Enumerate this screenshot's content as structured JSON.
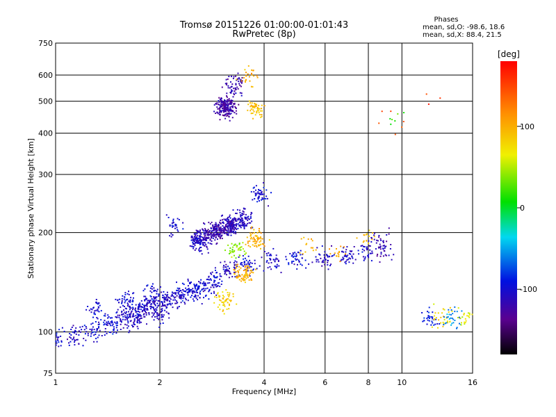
{
  "header": {
    "title_line1": "Tromsø 20151226 01:00:00-01:01:43",
    "title_line2": "RwPretec (8p)",
    "phases_heading": "Phases",
    "phases_o": "mean, sd,O:  -98.6, 18.6",
    "phases_x": "mean, sd,X:   88.4, 21.5"
  },
  "colorbar": {
    "unit_label": "[deg]",
    "ticks": [
      "100",
      "0",
      "-100"
    ],
    "tick_values": [
      100,
      0,
      -100
    ],
    "range": [
      -180,
      180
    ]
  },
  "chart_data": {
    "type": "scatter",
    "title": "Tromsø 20151226 01:00:00-01:01:43",
    "subtitle": "RwPretec (8p)",
    "xlabel": "Frequency [MHz]",
    "ylabel": "Stationary phase Virtual Height [km]",
    "x_scale": "log",
    "y_scale": "log",
    "xlim": [
      1,
      16
    ],
    "ylim": [
      75,
      750
    ],
    "x_ticks": [
      1,
      2,
      4,
      6,
      8,
      10,
      16
    ],
    "x_tick_labels": [
      "1",
      "2",
      "4",
      "6",
      "8",
      "10",
      "16"
    ],
    "y_ticks": [
      75,
      100,
      200,
      300,
      400,
      500,
      600,
      750
    ],
    "y_tick_labels": [
      "75",
      "100",
      "200",
      "300",
      "400",
      "500",
      "600",
      "750"
    ],
    "grid": true,
    "color_by": "phase_deg",
    "series": [
      {
        "values": [
          {
            "x": 1.0,
            "y": 95,
            "phase": -100,
            "n": 40
          },
          {
            "x": 1.15,
            "y": 97,
            "phase": -105,
            "n": 40
          },
          {
            "x": 1.3,
            "y": 100,
            "phase": -100,
            "n": 40
          },
          {
            "x": 1.45,
            "y": 105,
            "phase": -100,
            "n": 50
          },
          {
            "x": 1.6,
            "y": 112,
            "phase": -110,
            "n": 60
          },
          {
            "x": 1.75,
            "y": 117,
            "phase": -105,
            "n": 60
          },
          {
            "x": 1.9,
            "y": 121,
            "phase": -110,
            "n": 60
          },
          {
            "x": 2.1,
            "y": 124,
            "phase": -110,
            "n": 60
          },
          {
            "x": 2.3,
            "y": 128,
            "phase": -105,
            "n": 60
          },
          {
            "x": 2.5,
            "y": 133,
            "phase": -100,
            "n": 60
          },
          {
            "x": 2.7,
            "y": 136,
            "phase": -100,
            "n": 50
          },
          {
            "x": 2.9,
            "y": 145,
            "phase": -100,
            "n": 50
          },
          {
            "x": 3.2,
            "y": 155,
            "phase": -110,
            "n": 40
          },
          {
            "x": 3.6,
            "y": 160,
            "phase": -100,
            "n": 40
          },
          {
            "x": 4.2,
            "y": 163,
            "phase": -110,
            "n": 40
          },
          {
            "x": 5.0,
            "y": 166,
            "phase": -100,
            "n": 40
          },
          {
            "x": 6.0,
            "y": 168,
            "phase": -110,
            "n": 40
          },
          {
            "x": 7.0,
            "y": 170,
            "phase": -105,
            "n": 40
          },
          {
            "x": 8.0,
            "y": 174,
            "phase": -110,
            "n": 30
          },
          {
            "x": 8.8,
            "y": 178,
            "phase": -120,
            "n": 30
          },
          {
            "x": 8.7,
            "y": 190,
            "phase": -120,
            "n": 20
          },
          {
            "x": 1.3,
            "y": 118,
            "phase": -100,
            "n": 30
          },
          {
            "x": 1.6,
            "y": 126,
            "phase": -100,
            "n": 40
          },
          {
            "x": 1.9,
            "y": 131,
            "phase": -100,
            "n": 40
          },
          {
            "x": 1.7,
            "y": 108,
            "phase": -110,
            "n": 40
          },
          {
            "x": 2.0,
            "y": 113,
            "phase": -110,
            "n": 40
          },
          {
            "x": 2.2,
            "y": 210,
            "phase": -100,
            "n": 30
          },
          {
            "x": 2.6,
            "y": 190,
            "phase": -110,
            "n": 150
          },
          {
            "x": 2.9,
            "y": 200,
            "phase": -120,
            "n": 150
          },
          {
            "x": 3.2,
            "y": 210,
            "phase": -115,
            "n": 150
          },
          {
            "x": 3.5,
            "y": 220,
            "phase": -110,
            "n": 80
          },
          {
            "x": 3.9,
            "y": 260,
            "phase": -100,
            "n": 50
          },
          {
            "x": 3.1,
            "y": 480,
            "phase": -125,
            "n": 200
          },
          {
            "x": 3.3,
            "y": 560,
            "phase": -120,
            "n": 60
          },
          {
            "x": 3.8,
            "y": 470,
            "phase": 90,
            "n": 50
          },
          {
            "x": 3.6,
            "y": 600,
            "phase": 100,
            "n": 25
          },
          {
            "x": 3.5,
            "y": 150,
            "phase": 100,
            "n": 80
          },
          {
            "x": 3.1,
            "y": 125,
            "phase": 80,
            "n": 50
          },
          {
            "x": 3.8,
            "y": 190,
            "phase": 100,
            "n": 60
          },
          {
            "x": 3.3,
            "y": 180,
            "phase": 40,
            "n": 40
          },
          {
            "x": 5.3,
            "y": 185,
            "phase": 100,
            "n": 15
          },
          {
            "x": 6.5,
            "y": 172,
            "phase": 110,
            "n": 15
          },
          {
            "x": 8.0,
            "y": 195,
            "phase": 90,
            "n": 15
          },
          {
            "x": 9.4,
            "y": 450,
            "phase": 10,
            "n": 6
          },
          {
            "x": 12.0,
            "y": 110,
            "phase": -90,
            "n": 30
          },
          {
            "x": 13.0,
            "y": 111,
            "phase": 80,
            "n": 30
          },
          {
            "x": 14.0,
            "y": 110,
            "phase": -60,
            "n": 30
          },
          {
            "x": 15.0,
            "y": 111,
            "phase": 60,
            "n": 20
          },
          {
            "x": 12.5,
            "y": 500,
            "phase": 160,
            "n": 3
          },
          {
            "x": 9.2,
            "y": 450,
            "phase": 150,
            "n": 3
          },
          {
            "x": 10.0,
            "y": 420,
            "phase": 140,
            "n": 3
          }
        ]
      }
    ]
  }
}
